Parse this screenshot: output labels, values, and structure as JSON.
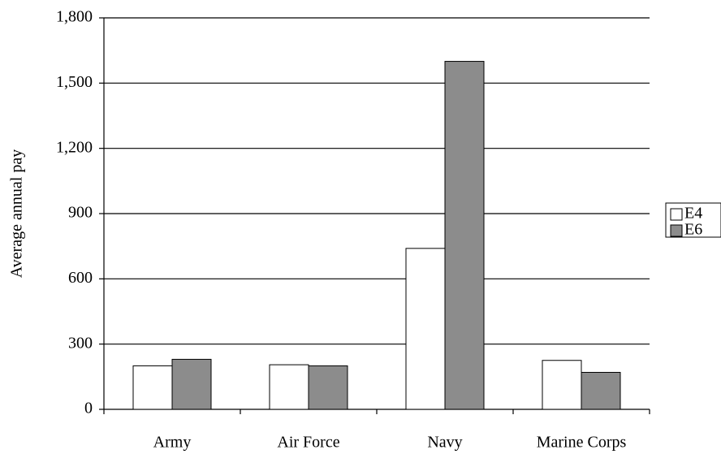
{
  "chart_data": {
    "type": "bar",
    "y_label": "Average annual pay",
    "categories": [
      "Army",
      "Air Force",
      "Navy",
      "Marine Corps"
    ],
    "series": [
      {
        "name": "E4",
        "color": "#ffffff",
        "values": [
          200,
          205,
          740,
          225
        ]
      },
      {
        "name": "E6",
        "color": "#8c8c8c",
        "values": [
          230,
          200,
          1600,
          170
        ]
      }
    ],
    "ylim": [
      0,
      1800
    ],
    "yticks": [
      0,
      300,
      600,
      900,
      {
        "value": 1200,
        "label": "1,200"
      },
      {
        "value": 1500,
        "label": "1,500"
      },
      {
        "value": 1800,
        "label": "1,800"
      }
    ],
    "grid": true,
    "legend": "right"
  }
}
